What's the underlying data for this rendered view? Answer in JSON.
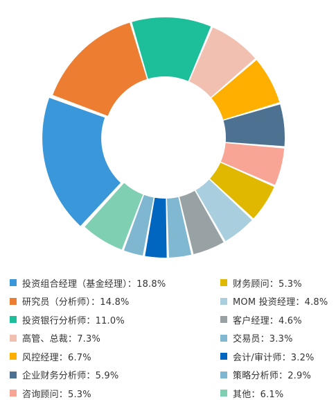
{
  "chart_data": {
    "type": "pie",
    "style": "donut",
    "legend_position": "bottom",
    "categories": [
      "投资组合经理（基金经理）",
      "研究员（分析师）",
      "投资银行分析师",
      "高管、总裁",
      "风控经理",
      "企业财务分析师",
      "咨询顾问",
      "财务顾问",
      "MOM 投资经理",
      "客户经理",
      "交易员",
      "会计/审计师",
      "策略分析师",
      "其他"
    ],
    "values": [
      18.8,
      14.8,
      11.0,
      7.3,
      6.7,
      5.9,
      5.3,
      5.3,
      4.8,
      4.6,
      3.3,
      3.2,
      2.9,
      6.1
    ],
    "colors": [
      "#3a97d9",
      "#ed7d31",
      "#1dbf9a",
      "#f2c0b0",
      "#ffaf00",
      "#4d7191",
      "#f9a596",
      "#e0b800",
      "#a9cede",
      "#98a2a4",
      "#80b8d2",
      "#0066c0",
      "#7fb7d1",
      "#7fcfb3"
    ],
    "legend_labels": [
      "投资组合经理（基金经理）：18.8%",
      "研究员（分析师）：14.8%",
      "投资银行分析师：11.0%",
      "高管、总裁：7.3%",
      "风控经理：6.7%",
      "企业财务分析师：5.9%",
      "咨询顾问：5.3%",
      "财务顾问：5.3%",
      "MOM 投资经理：4.8%",
      "客户经理：4.6%",
      "交易员：3.3%",
      "会计/审计师：3.2%",
      "策略分析师：2.9%",
      "其他：6.1%"
    ]
  }
}
